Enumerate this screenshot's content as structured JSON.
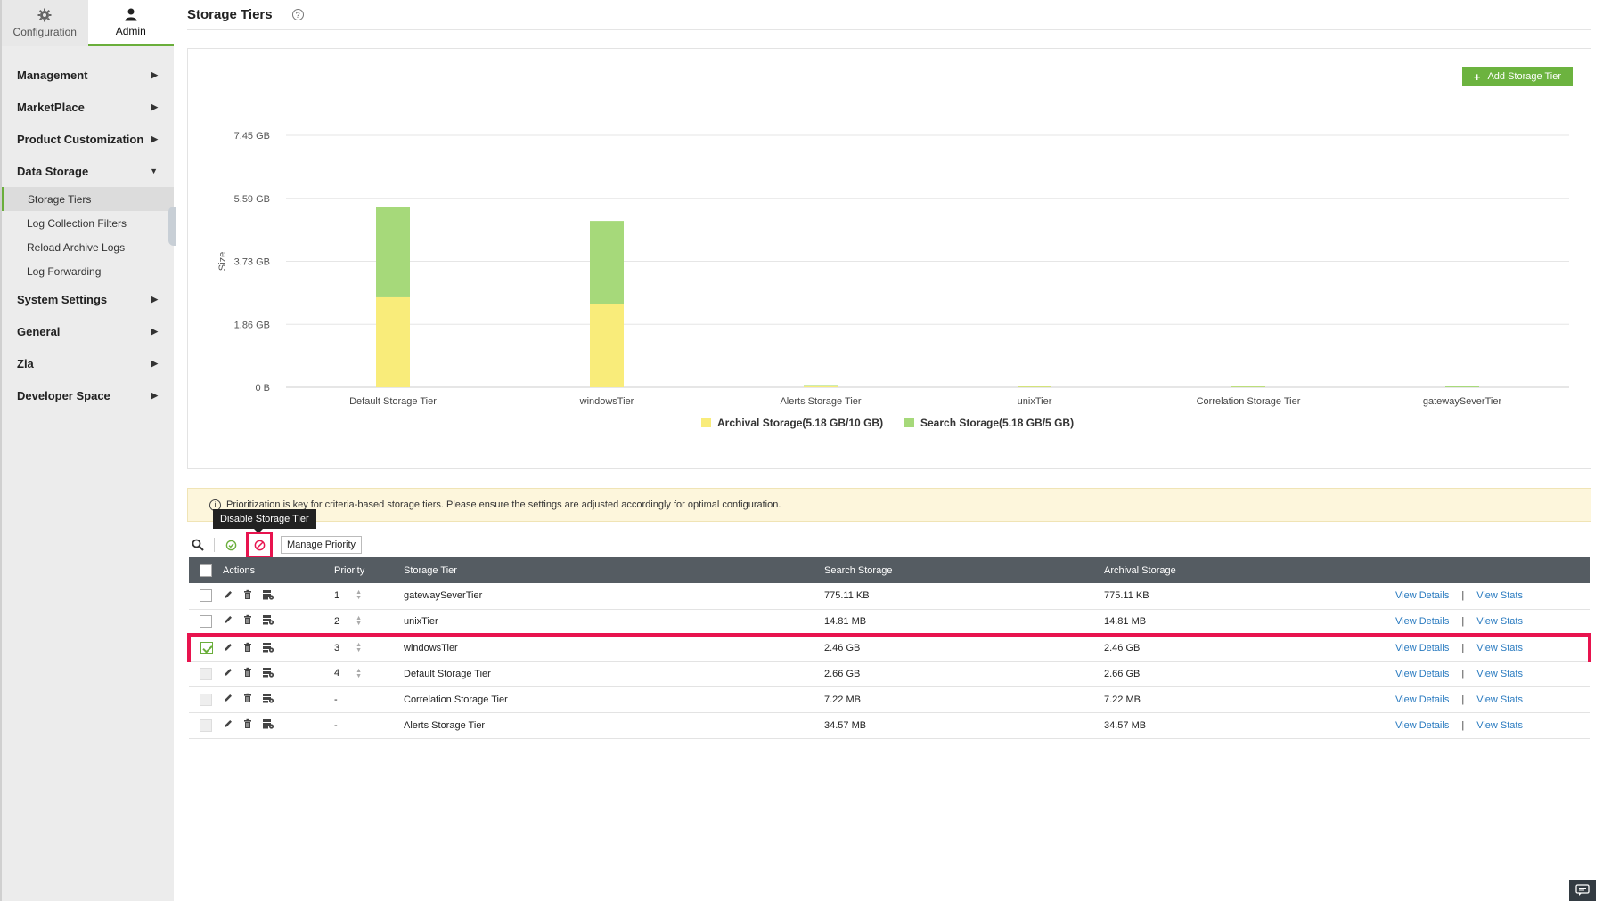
{
  "sidebar": {
    "top_tabs": [
      {
        "label": "Configuration",
        "icon": "gear-icon"
      },
      {
        "label": "Admin",
        "icon": "user-icon"
      }
    ],
    "groups": [
      {
        "label": "Management"
      },
      {
        "label": "MarketPlace"
      },
      {
        "label": "Product Customization"
      },
      {
        "label": "Data Storage",
        "expanded": true
      },
      {
        "label": "System Settings"
      },
      {
        "label": "General"
      },
      {
        "label": "Zia"
      },
      {
        "label": "Developer Space"
      }
    ],
    "data_storage_items": [
      {
        "label": "Storage Tiers",
        "active": true
      },
      {
        "label": "Log Collection Filters"
      },
      {
        "label": "Reload Archive Logs"
      },
      {
        "label": "Log Forwarding"
      }
    ]
  },
  "header": {
    "title": "Storage Tiers"
  },
  "add_button": {
    "label": "Add Storage Tier"
  },
  "chart_data": {
    "type": "bar",
    "stacked": true,
    "categories": [
      "Default Storage Tier",
      "windowsTier",
      "Alerts Storage Tier",
      "unixTier",
      "Correlation Storage Tier",
      "gatewaySeverTier"
    ],
    "series": [
      {
        "name": "Archival Storage(5.18 GB/10 GB)",
        "color": "#f9ec7a",
        "values": [
          2.66,
          2.46,
          0.0338,
          0.0145,
          0.007,
          0.0008
        ]
      },
      {
        "name": "Search Storage(5.18 GB/5 GB)",
        "color": "#a6d97a",
        "values": [
          2.66,
          2.46,
          0.0338,
          0.0145,
          0.007,
          0.0008
        ]
      }
    ],
    "ylabel": "Size",
    "yticks": [
      "0 B",
      "1.86 GB",
      "3.73 GB",
      "5.59 GB",
      "7.45 GB"
    ],
    "ylim": [
      0,
      7.45
    ],
    "grid": true,
    "legend_position": "bottom"
  },
  "info_banner": {
    "text": "Prioritization is key for criteria-based storage tiers. Please ensure the settings are adjusted accordingly for optimal configuration."
  },
  "toolbar": {
    "tooltip": "Disable Storage Tier",
    "manage_priority": "Manage Priority"
  },
  "table": {
    "headers": {
      "actions": "Actions",
      "priority": "Priority",
      "tier": "Storage Tier",
      "search": "Search Storage",
      "archival": "Archival Storage"
    },
    "view_details": "View Details",
    "view_stats": "View Stats",
    "separator": "|",
    "rows": [
      {
        "priority": "1",
        "tier": "gatewaySeverTier",
        "search": "775.11 KB",
        "archival": "775.11 KB"
      },
      {
        "priority": "2",
        "tier": "unixTier",
        "search": "14.81 MB",
        "archival": "14.81 MB"
      },
      {
        "priority": "3",
        "tier": "windowsTier",
        "search": "2.46 GB",
        "archival": "2.46 GB"
      },
      {
        "priority": "4",
        "tier": "Default Storage Tier",
        "search": "2.66 GB",
        "archival": "2.66 GB"
      },
      {
        "priority": "-",
        "tier": "Correlation Storage Tier",
        "search": "7.22 MB",
        "archival": "7.22 MB"
      },
      {
        "priority": "-",
        "tier": "Alerts Storage Tier",
        "search": "34.57 MB",
        "archival": "34.57 MB"
      }
    ]
  },
  "colors": {
    "accent": "#6cb33f",
    "highlight": "#e8134e",
    "link": "#2a7bc0",
    "table_header": "#555c62"
  }
}
